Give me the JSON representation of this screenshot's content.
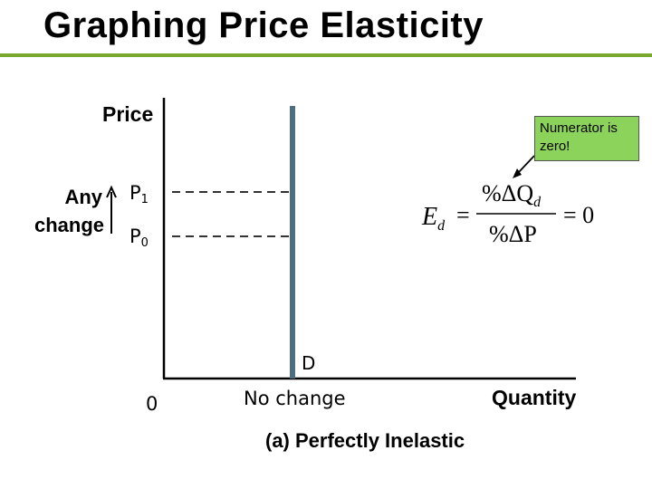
{
  "slide": {
    "title": "Graphing Price Elasticity",
    "accent_color": "#7aa82e"
  },
  "diagram": {
    "y_axis_label": "Price",
    "x_axis_label": "Quantity",
    "origin_label": "0",
    "price_high": {
      "letter": "P",
      "sub": "1"
    },
    "price_low": {
      "letter": "P",
      "sub": "0"
    },
    "change_label_line1": "Any",
    "change_label_line2": "change",
    "x_tick_label": "No change",
    "curve_label": "D",
    "caption": "(a) Perfectly Inelastic",
    "curve_color": "#4d6e7e"
  },
  "callout": {
    "text": "Numerator is zero!",
    "color": "#8bd35a"
  },
  "equation": {
    "lhs": "E",
    "lhs_sub": "d",
    "equals": "=",
    "numerator": "%ΔQ",
    "numerator_sub": "d",
    "denominator": "%ΔP",
    "rhs": "= 0"
  }
}
